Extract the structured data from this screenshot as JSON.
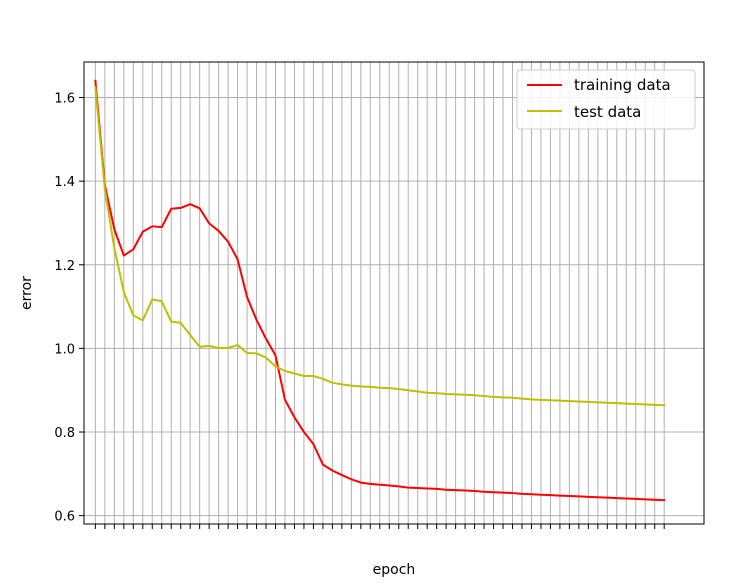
{
  "chart_data": {
    "type": "line",
    "title": "",
    "xlabel": "epoch",
    "ylabel": "error",
    "ylim": [
      0.58,
      1.685
    ],
    "yticks": [
      0.6,
      0.8,
      1.0,
      1.2,
      1.4,
      1.6
    ],
    "ytick_labels": [
      "0.6",
      "0.8",
      "1.0",
      "1.2",
      "1.4",
      "1.6"
    ],
    "x": [
      0,
      1,
      2,
      3,
      4,
      5,
      6,
      7,
      8,
      9,
      10,
      11,
      12,
      13,
      14,
      15,
      16,
      17,
      18,
      19,
      20,
      21,
      22,
      23,
      24,
      25,
      26,
      27,
      28,
      29,
      30,
      31,
      32,
      33,
      34,
      35,
      36,
      37,
      38,
      39,
      40,
      41,
      42,
      43,
      44,
      45,
      46,
      47,
      48,
      49,
      50,
      51,
      52,
      53,
      54,
      55,
      56,
      57,
      58,
      59,
      60
    ],
    "xlim": [
      -1.2,
      64.2
    ],
    "grid": true,
    "xtick_labels_visible": false,
    "legend_position": "upper-right",
    "series": [
      {
        "name": "training data",
        "color": "#ff0000",
        "values": [
          1.64,
          1.39,
          1.285,
          1.222,
          1.237,
          1.279,
          1.292,
          1.29,
          1.334,
          1.336,
          1.345,
          1.335,
          1.299,
          1.281,
          1.255,
          1.213,
          1.123,
          1.068,
          1.023,
          0.983,
          0.877,
          0.835,
          0.8,
          0.771,
          0.722,
          0.708,
          0.697,
          0.687,
          0.679,
          0.676,
          0.674,
          0.672,
          0.67,
          0.667,
          0.666,
          0.665,
          0.664,
          0.662,
          0.661,
          0.66,
          0.659,
          0.657,
          0.656,
          0.655,
          0.654,
          0.652,
          0.651,
          0.65,
          0.649,
          0.648,
          0.647,
          0.646,
          0.645,
          0.644,
          0.643,
          0.642,
          0.641,
          0.64,
          0.639,
          0.638,
          0.637
        ]
      },
      {
        "name": "test data",
        "color": "#bfbf00",
        "values": [
          1.625,
          1.38,
          1.24,
          1.135,
          1.079,
          1.067,
          1.117,
          1.113,
          1.064,
          1.061,
          1.032,
          1.004,
          1.006,
          1.001,
          1.001,
          1.008,
          0.989,
          0.988,
          0.978,
          0.957,
          0.946,
          0.94,
          0.934,
          0.934,
          0.927,
          0.918,
          0.914,
          0.911,
          0.909,
          0.908,
          0.906,
          0.905,
          0.903,
          0.9,
          0.897,
          0.894,
          0.893,
          0.891,
          0.89,
          0.889,
          0.888,
          0.886,
          0.884,
          0.883,
          0.882,
          0.88,
          0.878,
          0.877,
          0.876,
          0.875,
          0.874,
          0.873,
          0.872,
          0.871,
          0.87,
          0.869,
          0.868,
          0.867,
          0.866,
          0.865,
          0.864
        ]
      }
    ]
  }
}
